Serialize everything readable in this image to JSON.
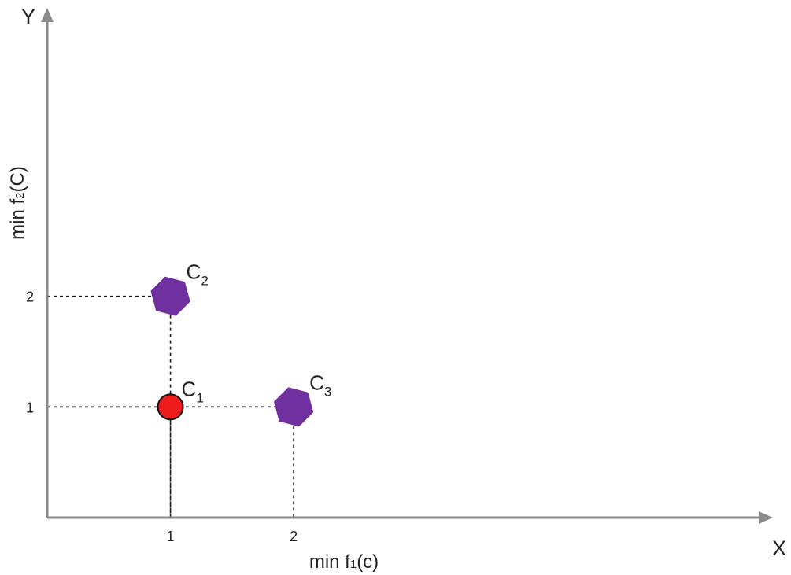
{
  "chart_data": {
    "type": "scatter",
    "xlabel": {
      "main": "min f",
      "sub": "1",
      "tail": "(c)"
    },
    "ylabel": {
      "main": "min f",
      "sub": "2",
      "tail": "(C)"
    },
    "x_axis_letter": "X",
    "y_axis_letter": "Y",
    "x_ticks": [
      "1",
      "2"
    ],
    "y_ticks": [
      "1",
      "2"
    ],
    "xlim": [
      0,
      5.8
    ],
    "ylim": [
      0,
      4.5
    ],
    "grid": false,
    "points": [
      {
        "name": "C",
        "sub": "1",
        "x": 1,
        "y": 1,
        "shape": "circle",
        "color": "#ee1c1c"
      },
      {
        "name": "C",
        "sub": "2",
        "x": 1,
        "y": 2,
        "shape": "hexagon",
        "color": "#7030a0"
      },
      {
        "name": "C",
        "sub": "3",
        "x": 2,
        "y": 1,
        "shape": "hexagon",
        "color": "#7030a0"
      }
    ]
  }
}
